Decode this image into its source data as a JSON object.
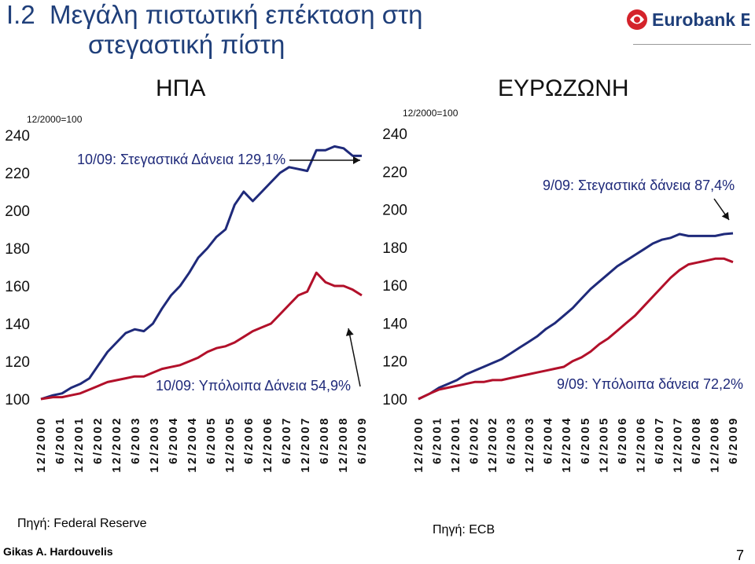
{
  "header": {
    "title_line1": "I.2  Μεγάλη πιστωτική επέκταση στη",
    "title_line2": "στεγαστική πίστη",
    "logo_text": "Eurobank EFG",
    "logo_icon": "eurobank-swirl-logo"
  },
  "footer": {
    "source_left": "Πηγή: Federal Reserve",
    "source_right": "Πηγή: ECB",
    "author": "Gikas A. Hardouvelis",
    "page": "7"
  },
  "colors": {
    "housing": "#1f2a7a",
    "other": "#b2102a",
    "title": "#1f3f7a"
  },
  "chart_data": [
    {
      "type": "line",
      "title": "ΗΠΑ",
      "base_note": "12/2000=100",
      "ylim": [
        100,
        240
      ],
      "yticks": [
        100,
        120,
        140,
        160,
        180,
        200,
        220,
        240
      ],
      "xticks": [
        "12/2000",
        "6/2001",
        "12/2001",
        "6/2002",
        "12/2002",
        "6/2003",
        "12/2003",
        "6/2004",
        "12/2004",
        "6/2005",
        "12/2005",
        "6/2006",
        "12/2006",
        "6/2007",
        "12/2007",
        "6/2008",
        "12/2008",
        "6/2009"
      ],
      "x": [
        2000.917,
        2001.25,
        2001.5,
        2001.75,
        2002.0,
        2002.25,
        2002.5,
        2002.75,
        2003.0,
        2003.25,
        2003.5,
        2003.75,
        2004.0,
        2004.25,
        2004.5,
        2004.75,
        2005.0,
        2005.25,
        2005.5,
        2005.75,
        2006.0,
        2006.25,
        2006.5,
        2006.75,
        2007.0,
        2007.25,
        2007.5,
        2007.75,
        2008.0,
        2008.25,
        2008.5,
        2008.75,
        2009.0,
        2009.25,
        2009.5,
        2009.75
      ],
      "annotations": [
        "10/09: Στεγαστικά Δάνεια 129,1%",
        "10/09: Υπόλοιπα Δάνεια 54,9%"
      ],
      "series": [
        {
          "name": "Στεγαστικά Δάνεια",
          "values": [
            100,
            102,
            103,
            106,
            108,
            111,
            118,
            125,
            130,
            135,
            137,
            136,
            140,
            148,
            155,
            160,
            167,
            175,
            180,
            186,
            190,
            203,
            210,
            205,
            210,
            215,
            220,
            223,
            222,
            221,
            232,
            232,
            234,
            233,
            229,
            229
          ]
        },
        {
          "name": "Υπόλοιπα Δάνεια",
          "values": [
            100,
            101,
            101,
            102,
            103,
            105,
            107,
            109,
            110,
            111,
            112,
            112,
            114,
            116,
            117,
            118,
            120,
            122,
            125,
            127,
            128,
            130,
            133,
            136,
            138,
            140,
            145,
            150,
            155,
            157,
            167,
            162,
            160,
            160,
            158,
            155
          ]
        }
      ]
    },
    {
      "type": "line",
      "title": "ΕΥΡΩΖΩΝΗ",
      "base_note": "12/2000=100",
      "ylim": [
        100,
        240
      ],
      "yticks": [
        100,
        120,
        140,
        160,
        180,
        200,
        220,
        240
      ],
      "xticks": [
        "12/2000",
        "6/2001",
        "12/2001",
        "6/2002",
        "12/2002",
        "6/2003",
        "12/2003",
        "6/2004",
        "12/2004",
        "6/2005",
        "12/2005",
        "6/2006",
        "12/2006",
        "6/2007",
        "12/2007",
        "6/2008",
        "12/2008",
        "6/2009"
      ],
      "x": [
        2000.917,
        2001.25,
        2001.5,
        2001.75,
        2002.0,
        2002.25,
        2002.5,
        2002.75,
        2003.0,
        2003.25,
        2003.5,
        2003.75,
        2004.0,
        2004.25,
        2004.5,
        2004.75,
        2005.0,
        2005.25,
        2005.5,
        2005.75,
        2006.0,
        2006.25,
        2006.5,
        2006.75,
        2007.0,
        2007.25,
        2007.5,
        2007.75,
        2008.0,
        2008.25,
        2008.5,
        2008.75,
        2009.0,
        2009.25,
        2009.5,
        2009.75
      ],
      "annotations": [
        "9/09: Στεγαστικά δάνεια 87,4%",
        "9/09: Υπόλοιπα δάνεια 72,2%"
      ],
      "series": [
        {
          "name": "Στεγαστικά δάνεια",
          "values": [
            100,
            103,
            106,
            108,
            110,
            113,
            115,
            117,
            119,
            121,
            124,
            127,
            130,
            133,
            137,
            140,
            144,
            148,
            153,
            158,
            162,
            166,
            170,
            173,
            176,
            179,
            182,
            184,
            185,
            187,
            186,
            186,
            186,
            186,
            187,
            187.4
          ]
        },
        {
          "name": "Υπόλοιπα δάνεια",
          "values": [
            100,
            103,
            105,
            106,
            107,
            108,
            109,
            109,
            110,
            110,
            111,
            112,
            113,
            114,
            115,
            116,
            117,
            120,
            122,
            125,
            129,
            132,
            136,
            140,
            144,
            149,
            154,
            159,
            164,
            168,
            171,
            172,
            173,
            174,
            174,
            172.2
          ]
        }
      ]
    }
  ]
}
